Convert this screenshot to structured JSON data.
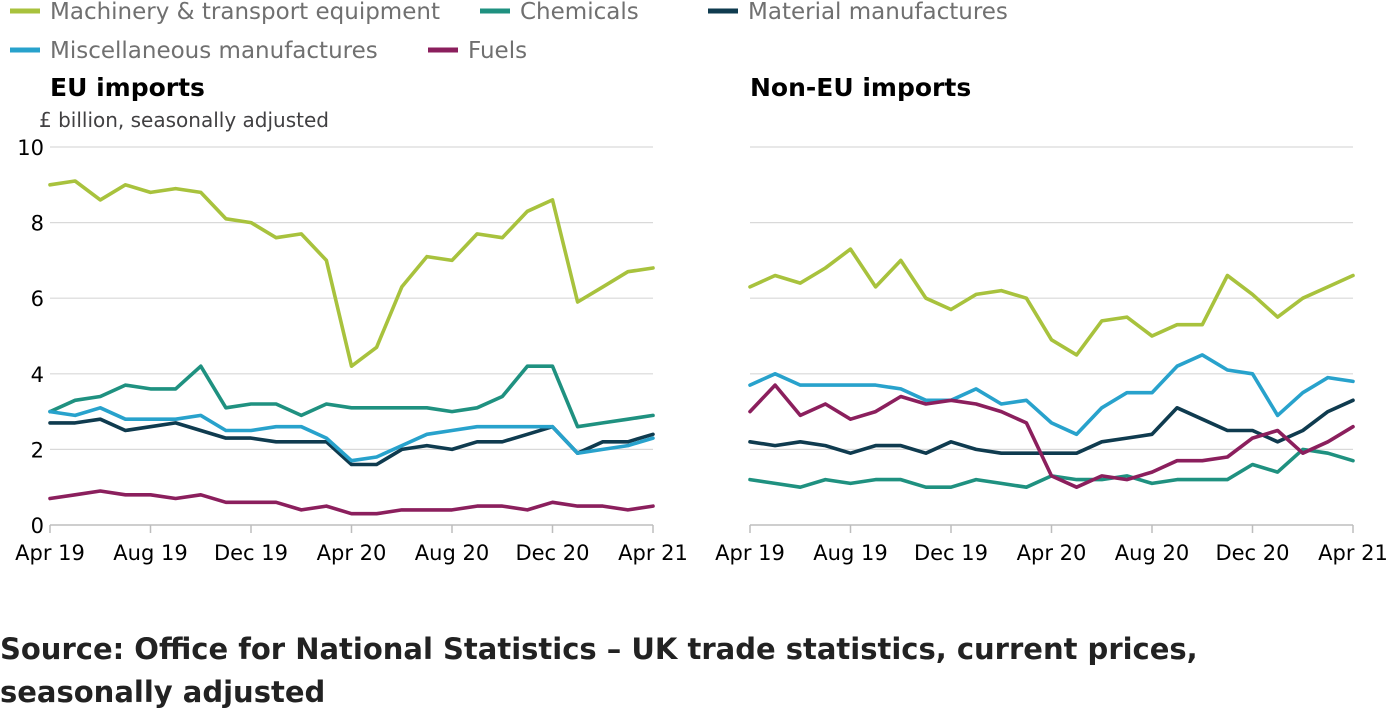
{
  "colors": {
    "machinery": "#a8c23d",
    "chemicals": "#1f9180",
    "material": "#0f3b4f",
    "misc": "#28a2cc",
    "fuels": "#8b1f5d"
  },
  "legend": [
    {
      "name": "Machinery & transport equipment",
      "color": "#a8c23d"
    },
    {
      "name": "Chemicals",
      "color": "#1f9180"
    },
    {
      "name": "Material manufactures",
      "color": "#0f3b4f"
    },
    {
      "name": "Miscellaneous manufactures",
      "color": "#28a2cc"
    },
    {
      "name": "Fuels",
      "color": "#8b1f5d"
    }
  ],
  "unit_label": "£ billion, seasonally adjusted",
  "source": "Source: Office for National Statistics – UK trade statistics, current prices, seasonally adjusted",
  "chart_data": [
    {
      "type": "line",
      "title": "EU imports",
      "ylabel": "£ billion, seasonally adjusted",
      "ylim": [
        0,
        10
      ],
      "yticks": [
        0,
        2,
        4,
        6,
        8,
        10
      ],
      "xticks": [
        "Apr 19",
        "Aug 19",
        "Dec 19",
        "Apr 20",
        "Aug 20",
        "Dec 20",
        "Apr 21"
      ],
      "x": [
        "Apr 19",
        "May 19",
        "Jun 19",
        "Jul 19",
        "Aug 19",
        "Sep 19",
        "Oct 19",
        "Nov 19",
        "Dec 19",
        "Jan 20",
        "Feb 20",
        "Mar 20",
        "Apr 20",
        "May 20",
        "Jun 20",
        "Jul 20",
        "Aug 20",
        "Sep 20",
        "Oct 20",
        "Nov 20",
        "Dec 20",
        "Jan 21",
        "Feb 21",
        "Mar 21",
        "Apr 21"
      ],
      "grid": true,
      "series": [
        {
          "name": "Machinery & transport equipment",
          "color": "#a8c23d",
          "values": [
            9.0,
            9.1,
            8.6,
            9.0,
            8.8,
            8.9,
            8.8,
            8.1,
            8.0,
            7.6,
            7.7,
            7.0,
            4.2,
            4.7,
            6.3,
            7.1,
            7.0,
            7.7,
            7.6,
            8.3,
            8.6,
            5.9,
            6.3,
            6.7,
            6.8
          ]
        },
        {
          "name": "Chemicals",
          "color": "#1f9180",
          "values": [
            3.0,
            3.3,
            3.4,
            3.7,
            3.6,
            3.6,
            4.2,
            3.1,
            3.2,
            3.2,
            2.9,
            3.2,
            3.1,
            3.1,
            3.1,
            3.1,
            3.0,
            3.1,
            3.4,
            4.2,
            4.2,
            2.6,
            2.7,
            2.8,
            2.9
          ]
        },
        {
          "name": "Material manufactures",
          "color": "#0f3b4f",
          "values": [
            2.7,
            2.7,
            2.8,
            2.5,
            2.6,
            2.7,
            2.5,
            2.3,
            2.3,
            2.2,
            2.2,
            2.2,
            1.6,
            1.6,
            2.0,
            2.1,
            2.0,
            2.2,
            2.2,
            2.4,
            2.6,
            1.9,
            2.2,
            2.2,
            2.4
          ]
        },
        {
          "name": "Miscellaneous manufactures",
          "color": "#28a2cc",
          "values": [
            3.0,
            2.9,
            3.1,
            2.8,
            2.8,
            2.8,
            2.9,
            2.5,
            2.5,
            2.6,
            2.6,
            2.3,
            1.7,
            1.8,
            2.1,
            2.4,
            2.5,
            2.6,
            2.6,
            2.6,
            2.6,
            1.9,
            2.0,
            2.1,
            2.3
          ]
        },
        {
          "name": "Fuels",
          "color": "#8b1f5d",
          "values": [
            0.7,
            0.8,
            0.9,
            0.8,
            0.8,
            0.7,
            0.8,
            0.6,
            0.6,
            0.6,
            0.4,
            0.5,
            0.3,
            0.3,
            0.4,
            0.4,
            0.4,
            0.5,
            0.5,
            0.4,
            0.6,
            0.5,
            0.5,
            0.4,
            0.5
          ]
        }
      ]
    },
    {
      "type": "line",
      "title": "Non-EU imports",
      "ylim": [
        0,
        10
      ],
      "yticks": [
        0,
        2,
        4,
        6,
        8,
        10
      ],
      "xticks": [
        "Apr 19",
        "Aug 19",
        "Dec 19",
        "Apr 20",
        "Aug 20",
        "Dec 20",
        "Apr 21"
      ],
      "x": [
        "Apr 19",
        "May 19",
        "Jun 19",
        "Jul 19",
        "Aug 19",
        "Sep 19",
        "Oct 19",
        "Nov 19",
        "Dec 19",
        "Jan 20",
        "Feb 20",
        "Mar 20",
        "Apr 20",
        "May 20",
        "Jun 20",
        "Jul 20",
        "Aug 20",
        "Sep 20",
        "Oct 20",
        "Nov 20",
        "Dec 20",
        "Jan 21",
        "Feb 21",
        "Mar 21",
        "Apr 21"
      ],
      "grid": true,
      "series": [
        {
          "name": "Machinery & transport equipment",
          "color": "#a8c23d",
          "values": [
            6.3,
            6.6,
            6.4,
            6.8,
            7.3,
            6.3,
            7.0,
            6.0,
            5.7,
            6.1,
            6.2,
            6.0,
            4.9,
            4.5,
            5.4,
            5.5,
            5.0,
            5.3,
            5.3,
            6.6,
            6.1,
            5.5,
            6.0,
            6.3,
            6.6
          ]
        },
        {
          "name": "Chemicals",
          "color": "#1f9180",
          "values": [
            1.2,
            1.1,
            1.0,
            1.2,
            1.1,
            1.2,
            1.2,
            1.0,
            1.0,
            1.2,
            1.1,
            1.0,
            1.3,
            1.2,
            1.2,
            1.3,
            1.1,
            1.2,
            1.2,
            1.2,
            1.6,
            1.4,
            2.0,
            1.9,
            1.7
          ]
        },
        {
          "name": "Material manufactures",
          "color": "#0f3b4f",
          "values": [
            2.2,
            2.1,
            2.2,
            2.1,
            1.9,
            2.1,
            2.1,
            1.9,
            2.2,
            2.0,
            1.9,
            1.9,
            1.9,
            1.9,
            2.2,
            2.3,
            2.4,
            3.1,
            2.8,
            2.5,
            2.5,
            2.2,
            2.5,
            3.0,
            3.3
          ]
        },
        {
          "name": "Miscellaneous manufactures",
          "color": "#28a2cc",
          "values": [
            3.7,
            4.0,
            3.7,
            3.7,
            3.7,
            3.7,
            3.6,
            3.3,
            3.3,
            3.6,
            3.2,
            3.3,
            2.7,
            2.4,
            3.1,
            3.5,
            3.5,
            4.2,
            4.5,
            4.1,
            4.0,
            2.9,
            3.5,
            3.9,
            3.8
          ]
        },
        {
          "name": "Fuels",
          "color": "#8b1f5d",
          "values": [
            3.0,
            3.7,
            2.9,
            3.2,
            2.8,
            3.0,
            3.4,
            3.2,
            3.3,
            3.2,
            3.0,
            2.7,
            1.3,
            1.0,
            1.3,
            1.2,
            1.4,
            1.7,
            1.7,
            1.8,
            2.3,
            2.5,
            1.9,
            2.2,
            2.6
          ]
        }
      ]
    }
  ]
}
